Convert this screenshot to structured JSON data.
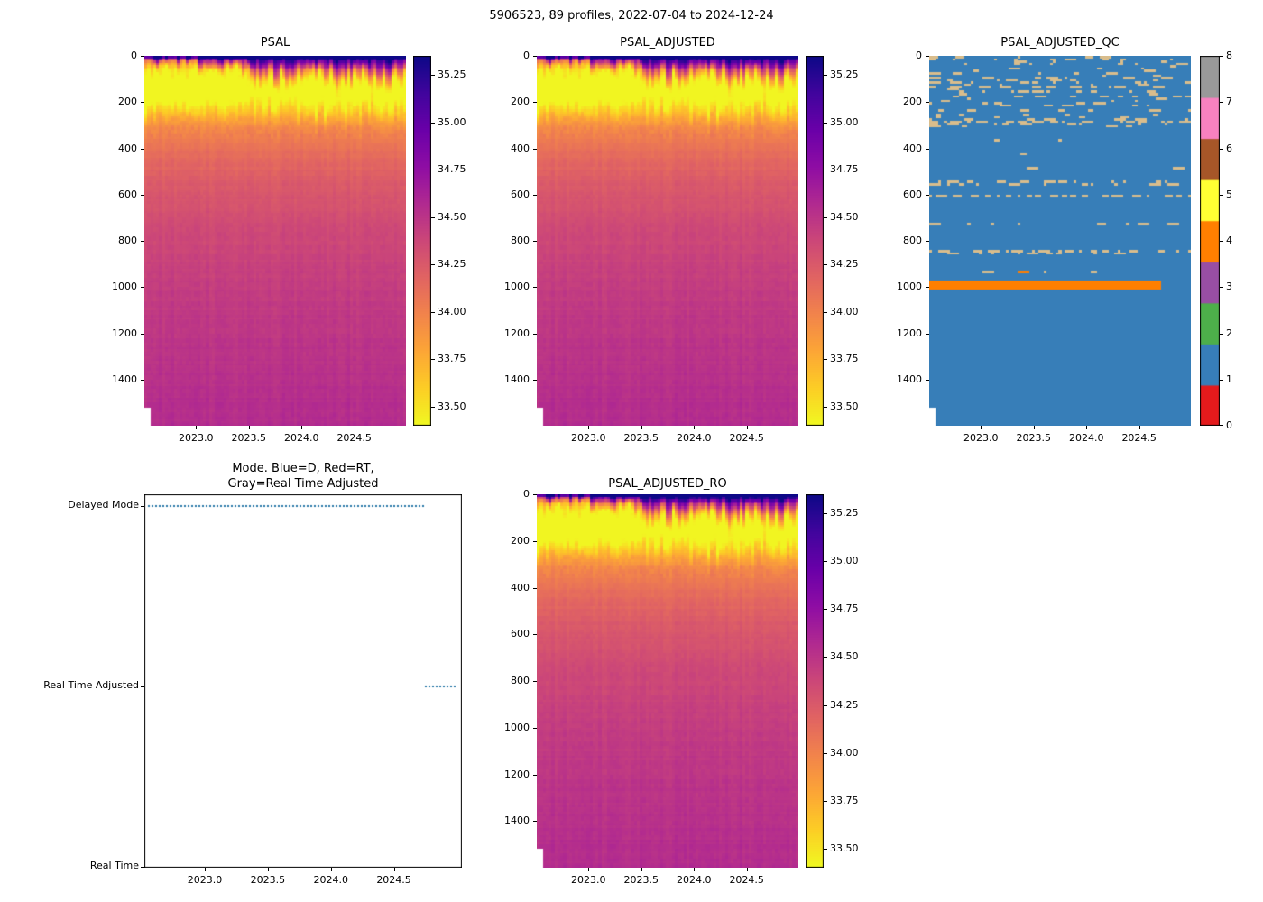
{
  "figure": {
    "title": "5906523, 89 profiles, 2022-07-04 to 2024-12-24"
  },
  "chart_data": [
    {
      "type": "heatmap",
      "title": "PSAL",
      "n_profiles": 89,
      "x_range": [
        2022.51,
        2024.99
      ],
      "x_ticks": [
        2023.0,
        2023.5,
        2024.0,
        2024.5
      ],
      "y_range": [
        0,
        1600
      ],
      "y_ticks": [
        0,
        200,
        400,
        600,
        800,
        1000,
        1200,
        1400
      ],
      "colormap": "plasma_reversed",
      "value_range": [
        33.4,
        35.35
      ],
      "colorbar_ticks": [
        35.25,
        35.0,
        34.75,
        34.5,
        34.25,
        34.0,
        33.75,
        33.5
      ],
      "depth_profile": {
        "depths": [
          0,
          60,
          160,
          240,
          320,
          420,
          560,
          760,
          1000,
          1250,
          1600
        ],
        "salinity": [
          33.8,
          33.55,
          33.5,
          33.72,
          33.98,
          34.12,
          34.25,
          34.36,
          34.44,
          34.5,
          34.56
        ]
      },
      "surface_cap": {
        "description": "high-salinity dark cap near surface, deepening after mid-2023",
        "max_salinity": 35.3
      },
      "fresh_band": {
        "depth_range": [
          80,
          260
        ],
        "salinity_min": 33.45
      }
    },
    {
      "type": "heatmap",
      "title": "PSAL_ADJUSTED",
      "n_profiles": 89,
      "x_range": [
        2022.51,
        2024.99
      ],
      "x_ticks": [
        2023.0,
        2023.5,
        2024.0,
        2024.5
      ],
      "y_range": [
        0,
        1600
      ],
      "y_ticks": [
        0,
        200,
        400,
        600,
        800,
        1000,
        1200,
        1400
      ],
      "colormap": "plasma_reversed",
      "value_range": [
        33.4,
        35.35
      ],
      "colorbar_ticks": [
        35.25,
        35.0,
        34.75,
        34.5,
        34.25,
        34.0,
        33.75,
        33.5
      ],
      "depth_profile": {
        "depths": [
          0,
          60,
          160,
          240,
          320,
          420,
          560,
          760,
          1000,
          1250,
          1600
        ],
        "salinity": [
          33.8,
          33.55,
          33.5,
          33.72,
          33.98,
          34.12,
          34.25,
          34.36,
          34.44,
          34.5,
          34.56
        ]
      },
      "surface_cap": {
        "description": "high-salinity dark cap near surface, deepening after mid-2023",
        "max_salinity": 35.3
      },
      "fresh_band": {
        "depth_range": [
          80,
          260
        ],
        "salinity_min": 33.45
      }
    },
    {
      "type": "heatmap",
      "title": "PSAL_ADJUSTED_QC",
      "categorical": true,
      "n_profiles": 89,
      "x_range": [
        2022.51,
        2024.99
      ],
      "x_ticks": [
        2023.0,
        2023.5,
        2024.0,
        2024.5
      ],
      "y_range": [
        0,
        1600
      ],
      "y_ticks": [
        0,
        200,
        400,
        600,
        800,
        1000,
        1200,
        1400
      ],
      "flag_values": [
        0,
        1,
        2,
        3,
        4,
        5,
        6,
        7,
        8
      ],
      "flag_colors": [
        "#e41a1c",
        "#377eb8",
        "#4daf4a",
        "#984ea3",
        "#ff7f00",
        "#ffff33",
        "#a65628",
        "#f781bf",
        "#999999"
      ],
      "dominant_flag": 1,
      "background_color": "#377eb8",
      "speckle_color": "#d9bd8c",
      "speckle_description": "scattered flagged points, dense above 300 m, dashed lines near 280, 550, 600, 720, 840 m",
      "orange_band": {
        "flag": 4,
        "depth_m": 990,
        "thickness_m": 40,
        "x_start": 2022.52,
        "x_end": 2024.7
      }
    },
    {
      "type": "line",
      "title_lines": [
        "Mode. Blue=D, Red=RT,",
        "Gray=Real Time Adjusted"
      ],
      "y_categories": [
        "Delayed Mode",
        "Real Time Adjusted",
        "Real Time"
      ],
      "line_color": "#2878a8",
      "line_style": "dotted",
      "x_range": [
        2022.52,
        2025.04
      ],
      "x_ticks": [
        2023.0,
        2023.5,
        2024.0,
        2024.5
      ],
      "segments": [
        {
          "category": "Delayed Mode",
          "x_start": 2022.55,
          "x_end": 2024.73
        },
        {
          "category": "Real Time Adjusted",
          "x_start": 2024.75,
          "x_end": 2024.99
        }
      ]
    },
    {
      "type": "heatmap",
      "title": "PSAL_ADJUSTED_RO",
      "n_profiles": 89,
      "x_range": [
        2022.51,
        2024.99
      ],
      "x_ticks": [
        2023.0,
        2023.5,
        2024.0,
        2024.5
      ],
      "y_range": [
        0,
        1600
      ],
      "y_ticks": [
        0,
        200,
        400,
        600,
        800,
        1000,
        1200,
        1400
      ],
      "colormap": "plasma_reversed",
      "value_range": [
        33.4,
        35.35
      ],
      "colorbar_ticks": [
        35.25,
        35.0,
        34.75,
        34.5,
        34.25,
        34.0,
        33.75,
        33.5
      ],
      "depth_profile": {
        "depths": [
          0,
          60,
          160,
          240,
          320,
          420,
          560,
          760,
          1000,
          1250,
          1600
        ],
        "salinity": [
          33.8,
          33.55,
          33.5,
          33.72,
          33.98,
          34.12,
          34.25,
          34.36,
          34.44,
          34.5,
          34.56
        ]
      },
      "surface_cap": {
        "description": "high-salinity dark cap near surface, deepening after mid-2023",
        "max_salinity": 35.3
      },
      "fresh_band": {
        "depth_range": [
          80,
          260
        ],
        "salinity_min": 33.45
      }
    }
  ]
}
